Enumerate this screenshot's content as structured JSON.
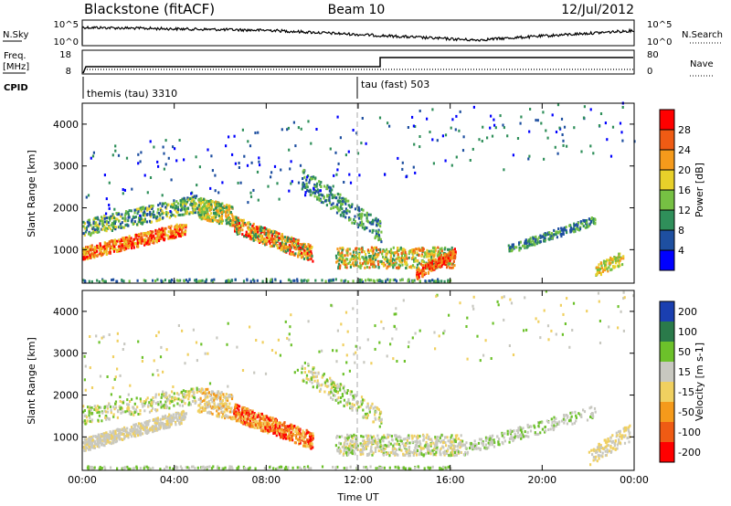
{
  "header": {
    "station": "Blackstone (fitACF)",
    "beam": "Beam 10",
    "date": "12/Jul/2012"
  },
  "summary_panel": {
    "nsky_label": "N.Sky",
    "nsky_ticks": [
      "10^5",
      "10^0"
    ],
    "nsearch_label": "N.Search",
    "nsearch_ticks": [
      "10^5",
      "10^0"
    ],
    "freq_label": "Freq.",
    "freq_unit": "[MHz]",
    "freq_ticks": [
      "18",
      "8"
    ],
    "nave_label": "Nave",
    "nave_ticks": [
      "80",
      "0"
    ],
    "cpid_label": "CPID",
    "cpid_segments": [
      {
        "label": "themis (tau) 3310",
        "start_hour": 0
      },
      {
        "label": "tau (fast) 503",
        "start_hour": 12
      }
    ]
  },
  "chart_data": [
    {
      "type": "heatmap",
      "title": "Power",
      "xlabel": "",
      "ylabel": "Slant Range [km]",
      "x_range_hours": [
        0,
        24
      ],
      "ylim": [
        200,
        4500
      ],
      "y_ticks": [
        "1000",
        "2000",
        "3000",
        "4000"
      ],
      "colorbar_label": "Power [dB]",
      "colorbar_ticks": [
        "4",
        "8",
        "12",
        "16",
        "20",
        "24",
        "28"
      ],
      "colorbar_range": [
        0,
        32
      ],
      "colors": [
        "#0000ff",
        "#1e4fa0",
        "#2f8f5a",
        "#76c043",
        "#e8d02a",
        "#f59a1b",
        "#ef5b14",
        "#ff0000"
      ]
    },
    {
      "type": "heatmap",
      "title": "Velocity",
      "xlabel": "Time UT",
      "ylabel": "Slant Range [km]",
      "x_range_hours": [
        0,
        24
      ],
      "x_ticks": [
        "00:00",
        "04:00",
        "08:00",
        "12:00",
        "16:00",
        "20:00",
        "00:00"
      ],
      "ylim": [
        200,
        4500
      ],
      "y_ticks": [
        "1000",
        "2000",
        "3000",
        "4000"
      ],
      "colorbar_label": "Velocity [m s-1]",
      "colorbar_ticks": [
        "200",
        "100",
        "50",
        "15",
        "-15",
        "-50",
        "-100",
        "-200"
      ],
      "colors": [
        "#1a3fb0",
        "#2a7a4a",
        "#6cc12a",
        "#c8c8c0",
        "#f0d060",
        "#f59a1b",
        "#ef5b14",
        "#ff0000"
      ]
    }
  ]
}
